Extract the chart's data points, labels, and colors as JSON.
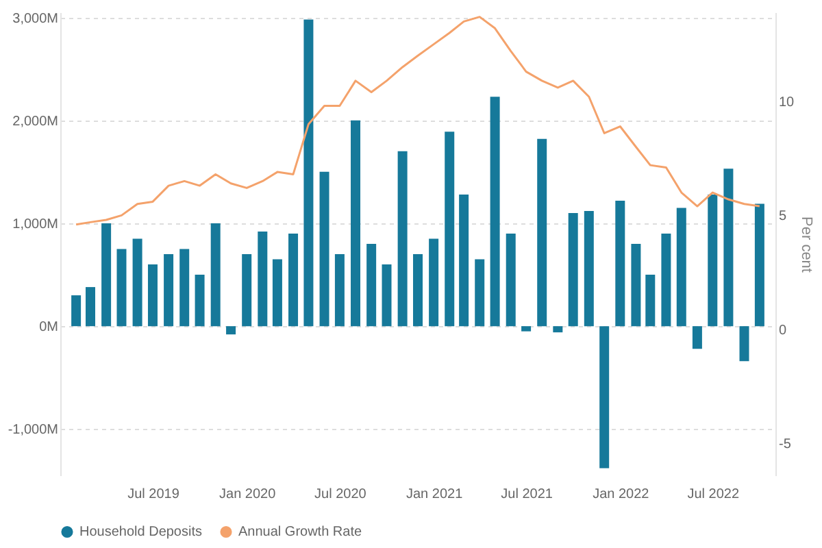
{
  "chart_data": {
    "type": "bar",
    "y2label": "Per cent",
    "x": [
      "2019-02",
      "2019-03",
      "2019-04",
      "2019-05",
      "2019-06",
      "2019-07",
      "2019-08",
      "2019-09",
      "2019-10",
      "2019-11",
      "2019-12",
      "2020-01",
      "2020-02",
      "2020-03",
      "2020-04",
      "2020-05",
      "2020-06",
      "2020-07",
      "2020-08",
      "2020-09",
      "2020-10",
      "2020-11",
      "2020-12",
      "2021-01",
      "2021-02",
      "2021-03",
      "2021-04",
      "2021-05",
      "2021-06",
      "2021-07",
      "2021-08",
      "2021-09",
      "2021-10",
      "2021-11",
      "2021-12",
      "2022-01",
      "2022-02",
      "2022-03",
      "2022-04",
      "2022-05",
      "2022-06",
      "2022-07",
      "2022-08",
      "2022-09",
      "2022-10"
    ],
    "series": [
      {
        "name": "Household Deposits",
        "color": "#16799a",
        "values": [
          300,
          380,
          1000,
          750,
          850,
          600,
          700,
          750,
          500,
          1000,
          -80,
          700,
          920,
          650,
          900,
          2980,
          1500,
          700,
          2000,
          800,
          600,
          1700,
          700,
          850,
          1890,
          1280,
          650,
          2230,
          900,
          -50,
          1820,
          -60,
          1100,
          1120,
          -1380,
          1220,
          800,
          500,
          900,
          1150,
          -220,
          1280,
          1530,
          -340,
          1190
        ]
      },
      {
        "name": "Annual Growth Rate",
        "type": "line",
        "axis": "y2",
        "color": "#f4a26b",
        "values": [
          4.6,
          4.7,
          4.8,
          5.0,
          5.5,
          5.6,
          6.3,
          6.5,
          6.3,
          6.8,
          6.4,
          6.2,
          6.5,
          6.9,
          6.8,
          9.0,
          9.8,
          9.8,
          10.9,
          10.4,
          10.9,
          11.5,
          12.0,
          12.5,
          13.0,
          13.5,
          13.7,
          13.2,
          12.2,
          11.3,
          10.9,
          10.6,
          10.9,
          10.2,
          8.6,
          8.9,
          8.0,
          7.2,
          7.1,
          6.0,
          5.4,
          6.0,
          5.7,
          5.5,
          5.4
        ]
      }
    ],
    "xlim": [
      "2019-01",
      "2022-11"
    ],
    "xticks": [
      {
        "value": "2019-07",
        "label": "Jul 2019"
      },
      {
        "value": "2020-01",
        "label": "Jan 2020"
      },
      {
        "value": "2020-07",
        "label": "Jul 2020"
      },
      {
        "value": "2021-01",
        "label": "Jan 2021"
      },
      {
        "value": "2021-07",
        "label": "Jul 2021"
      },
      {
        "value": "2022-01",
        "label": "Jan 2022"
      },
      {
        "value": "2022-07",
        "label": "Jul 2022"
      }
    ],
    "ylim": [
      -1450,
      3050
    ],
    "yticks": [
      {
        "value": -1000,
        "label": "-1,000M"
      },
      {
        "value": 0,
        "label": "0M"
      },
      {
        "value": 1000,
        "label": "1,000M"
      },
      {
        "value": 2000,
        "label": "2,000M"
      },
      {
        "value": 3000,
        "label": "3,000M"
      }
    ],
    "y2lim": [
      -6.4,
      13.9
    ],
    "y2ticks": [
      -5,
      0,
      5,
      10
    ],
    "grid": "y",
    "legend": "bottom",
    "marker": "none",
    "line_style": "solid"
  }
}
